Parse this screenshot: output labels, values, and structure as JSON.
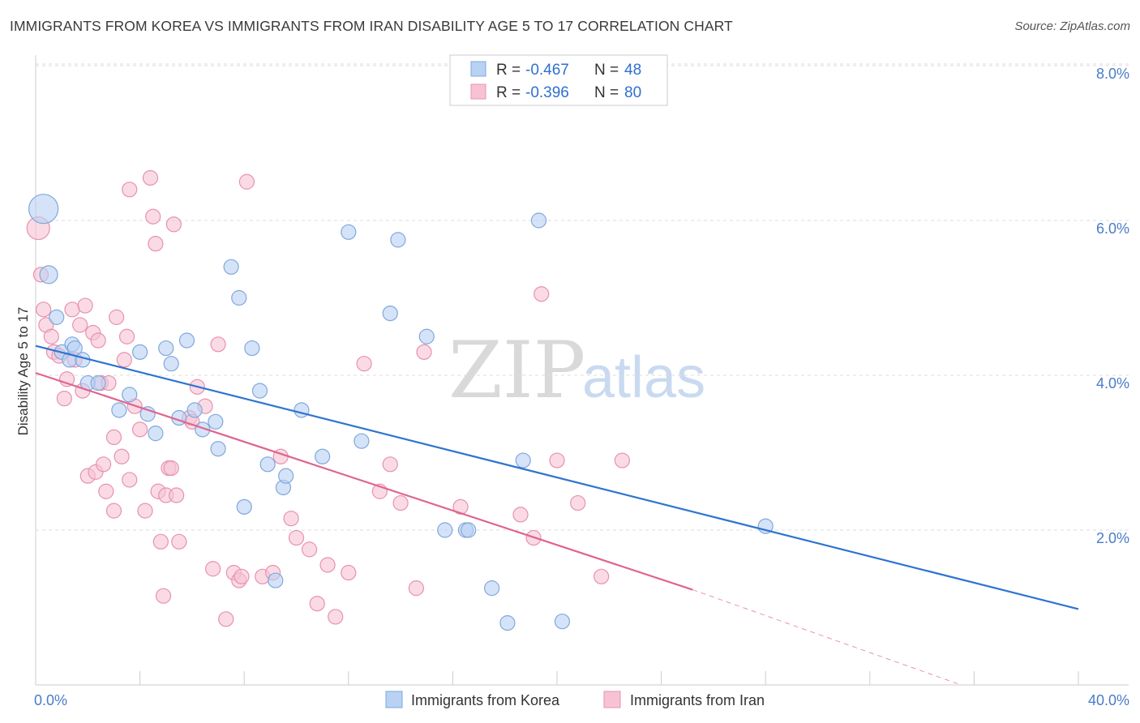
{
  "title": "IMMIGRANTS FROM KOREA VS IMMIGRANTS FROM IRAN DISABILITY AGE 5 TO 17 CORRELATION CHART",
  "source": "Source: ZipAtlas.com",
  "watermark": {
    "zip": "ZIP",
    "atlas": "atlas"
  },
  "colors": {
    "korea_fill": "#b9d1f3",
    "korea_stroke": "#7fa8dc",
    "korea_line": "#2f74d0",
    "iran_fill": "#f7c3d4",
    "iran_stroke": "#e891ae",
    "iran_line": "#e0648e",
    "tick_label": "#4a7cc8",
    "grid": "#dddddd"
  },
  "legend": {
    "korea": {
      "r_label": "R = ",
      "r_value": "-0.467",
      "n_label": "N = ",
      "n_value": "48"
    },
    "iran": {
      "r_label": "R = ",
      "r_value": "-0.396",
      "n_label": "N = ",
      "n_value": "80"
    }
  },
  "chart_data": {
    "type": "scatter",
    "title": "IMMIGRANTS FROM KOREA VS IMMIGRANTS FROM IRAN DISABILITY AGE 5 TO 17 CORRELATION CHART",
    "xlabel": "",
    "ylabel": "Disability Age 5 to 17",
    "xlim": [
      0,
      40
    ],
    "ylim": [
      0,
      8.4
    ],
    "x_tick_labels": [
      "0.0%",
      "40.0%"
    ],
    "y_ticks": [
      2,
      4,
      6,
      8
    ],
    "y_tick_labels": [
      "2.0%",
      "4.0%",
      "6.0%",
      "8.0%"
    ],
    "grid": "horizontal dashed",
    "legend_position": "top-center",
    "series": [
      {
        "name": "Immigrants from Korea",
        "trend": {
          "x": [
            0,
            40
          ],
          "y": [
            4.38,
            0.98
          ]
        },
        "points": [
          [
            0.3,
            6.15,
            18
          ],
          [
            0.5,
            5.3,
            11
          ],
          [
            0.8,
            4.75,
            9
          ],
          [
            1.0,
            4.3,
            9
          ],
          [
            1.4,
            4.4,
            9
          ],
          [
            1.3,
            4.2,
            9
          ],
          [
            1.5,
            4.35,
            9
          ],
          [
            1.8,
            4.2,
            9
          ],
          [
            2.0,
            3.9,
            9
          ],
          [
            2.4,
            3.9,
            9
          ],
          [
            3.2,
            3.55,
            9
          ],
          [
            3.6,
            3.75,
            9
          ],
          [
            4.0,
            4.3,
            9
          ],
          [
            4.3,
            3.5,
            9
          ],
          [
            4.6,
            3.25,
            9
          ],
          [
            5.0,
            4.35,
            9
          ],
          [
            5.2,
            4.15,
            9
          ],
          [
            5.5,
            3.45,
            9
          ],
          [
            5.8,
            4.45,
            9
          ],
          [
            6.1,
            3.55,
            9
          ],
          [
            6.4,
            3.3,
            9
          ],
          [
            6.9,
            3.4,
            9
          ],
          [
            7.0,
            3.05,
            9
          ],
          [
            7.5,
            5.4,
            9
          ],
          [
            7.8,
            5.0,
            9
          ],
          [
            8.0,
            2.3,
            9
          ],
          [
            8.3,
            4.35,
            9
          ],
          [
            8.6,
            3.8,
            9
          ],
          [
            8.9,
            2.85,
            9
          ],
          [
            9.2,
            1.35,
            9
          ],
          [
            9.5,
            2.55,
            9
          ],
          [
            9.6,
            2.7,
            9
          ],
          [
            10.2,
            3.55,
            9
          ],
          [
            11.0,
            2.95,
            9
          ],
          [
            12.0,
            5.85,
            9
          ],
          [
            12.5,
            3.15,
            9
          ],
          [
            13.6,
            4.8,
            9
          ],
          [
            13.9,
            5.75,
            9
          ],
          [
            15.0,
            4.5,
            9
          ],
          [
            15.7,
            2.0,
            9
          ],
          [
            16.5,
            2.0,
            9
          ],
          [
            17.5,
            1.25,
            9
          ],
          [
            18.1,
            0.8,
            9
          ],
          [
            18.7,
            2.9,
            9
          ],
          [
            19.3,
            6.0,
            9
          ],
          [
            20.2,
            0.82,
            9
          ],
          [
            28.0,
            2.05,
            9
          ],
          [
            16.6,
            2.0,
            9
          ]
        ]
      },
      {
        "name": "Immigrants from Iran",
        "trend": {
          "x": [
            0,
            25.2
          ],
          "y": [
            4.03,
            1.23
          ]
        },
        "trend_dashed": {
          "x": [
            25.2,
            35.5
          ],
          "y": [
            1.23,
            0.0
          ]
        },
        "points": [
          [
            0.1,
            5.9,
            14
          ],
          [
            0.2,
            5.3,
            9
          ],
          [
            0.3,
            4.85,
            9
          ],
          [
            0.4,
            4.65,
            9
          ],
          [
            0.6,
            4.5,
            9
          ],
          [
            0.7,
            4.3,
            9
          ],
          [
            0.9,
            4.25,
            9
          ],
          [
            1.1,
            3.7,
            9
          ],
          [
            1.2,
            3.95,
            9
          ],
          [
            1.4,
            4.85,
            9
          ],
          [
            1.5,
            4.2,
            9
          ],
          [
            1.7,
            4.65,
            9
          ],
          [
            1.8,
            3.8,
            9
          ],
          [
            1.9,
            4.9,
            9
          ],
          [
            2.0,
            2.7,
            9
          ],
          [
            2.2,
            4.55,
            9
          ],
          [
            2.3,
            2.75,
            9
          ],
          [
            2.4,
            4.45,
            9
          ],
          [
            2.5,
            3.9,
            9
          ],
          [
            2.6,
            2.85,
            9
          ],
          [
            2.7,
            2.5,
            9
          ],
          [
            2.8,
            3.9,
            9
          ],
          [
            3.0,
            2.25,
            9
          ],
          [
            3.0,
            3.2,
            9
          ],
          [
            3.1,
            4.75,
            9
          ],
          [
            3.3,
            2.95,
            9
          ],
          [
            3.4,
            4.2,
            9
          ],
          [
            3.5,
            4.5,
            9
          ],
          [
            3.6,
            2.65,
            9
          ],
          [
            3.6,
            6.4,
            9
          ],
          [
            3.8,
            3.6,
            9
          ],
          [
            4.0,
            3.3,
            9
          ],
          [
            4.2,
            2.25,
            9
          ],
          [
            4.4,
            6.55,
            9
          ],
          [
            4.5,
            6.05,
            9
          ],
          [
            4.6,
            5.7,
            9
          ],
          [
            4.7,
            2.5,
            9
          ],
          [
            4.8,
            1.85,
            9
          ],
          [
            4.9,
            1.15,
            9
          ],
          [
            5.0,
            2.45,
            9
          ],
          [
            5.1,
            2.8,
            9
          ],
          [
            5.2,
            2.8,
            9
          ],
          [
            5.3,
            5.95,
            9
          ],
          [
            5.4,
            2.45,
            9
          ],
          [
            5.5,
            1.85,
            9
          ],
          [
            5.9,
            3.45,
            9
          ],
          [
            6.2,
            3.85,
            9
          ],
          [
            6.5,
            3.6,
            9
          ],
          [
            6.8,
            1.5,
            9
          ],
          [
            7.0,
            4.4,
            9
          ],
          [
            7.3,
            0.85,
            9
          ],
          [
            7.6,
            1.45,
            9
          ],
          [
            7.8,
            1.35,
            9
          ],
          [
            8.1,
            6.5,
            9
          ],
          [
            8.7,
            1.4,
            9
          ],
          [
            9.1,
            1.45,
            9
          ],
          [
            9.4,
            2.95,
            9
          ],
          [
            9.8,
            2.15,
            9
          ],
          [
            10.0,
            1.9,
            9
          ],
          [
            10.5,
            1.75,
            9
          ],
          [
            10.8,
            1.05,
            9
          ],
          [
            11.2,
            1.55,
            9
          ],
          [
            11.5,
            0.88,
            9
          ],
          [
            12.0,
            1.45,
            9
          ],
          [
            12.6,
            4.15,
            9
          ],
          [
            13.2,
            2.5,
            9
          ],
          [
            13.6,
            2.85,
            9
          ],
          [
            14.0,
            2.35,
            9
          ],
          [
            14.6,
            1.25,
            9
          ],
          [
            14.9,
            4.3,
            9
          ],
          [
            16.3,
            2.3,
            9
          ],
          [
            18.6,
            2.2,
            9
          ],
          [
            19.1,
            1.9,
            9
          ],
          [
            19.4,
            5.05,
            9
          ],
          [
            20.0,
            2.9,
            9
          ],
          [
            20.8,
            2.35,
            9
          ],
          [
            21.7,
            1.4,
            9
          ],
          [
            22.5,
            2.9,
            9
          ],
          [
            7.9,
            1.4,
            9
          ],
          [
            6.0,
            3.4,
            9
          ]
        ]
      }
    ]
  }
}
